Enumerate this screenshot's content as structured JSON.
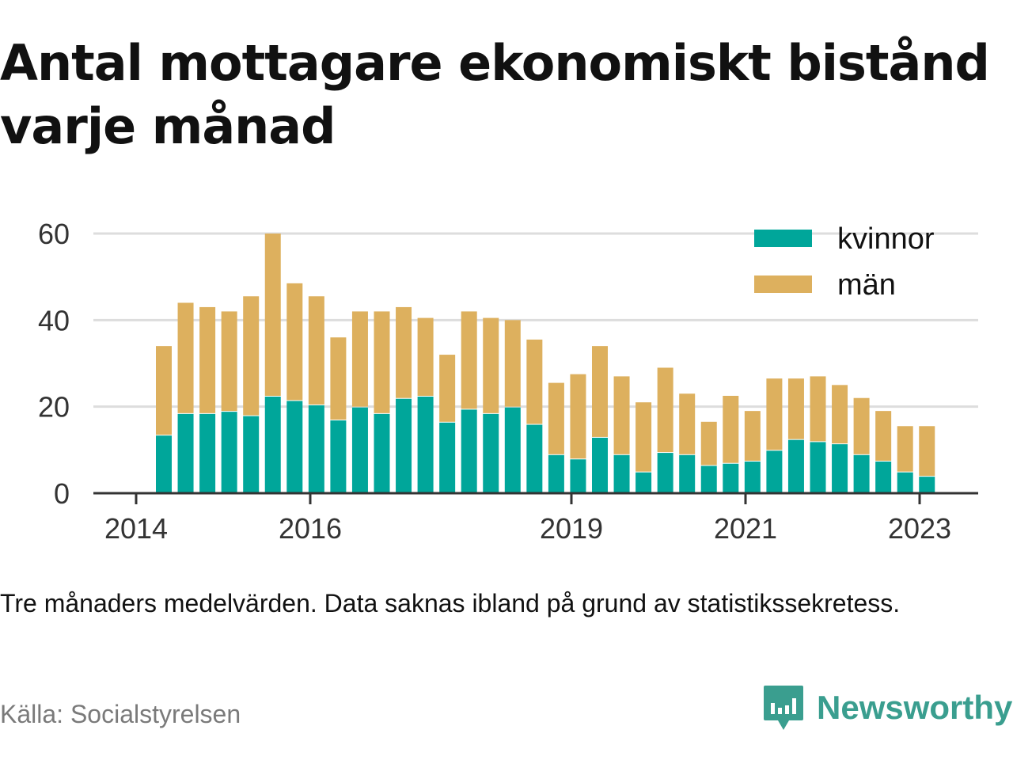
{
  "title": "Antal mottagare ekonomiskt bistånd varje månad",
  "note": "Tre månaders medelvärden. Data saknas ibland på grund av statistikssekretess.",
  "source": "Källa: Socialstyrelsen",
  "brand": {
    "name": "Newsworthy",
    "color": "#3a9e8f"
  },
  "colors": {
    "kvinnor": "#00a69a",
    "man": "#ddb05e",
    "grid": "#dddddd",
    "axis": "#333333"
  },
  "chart_data": {
    "type": "bar",
    "stacked": true,
    "ylim": [
      0,
      60
    ],
    "yticks": [
      0,
      20,
      40,
      60
    ],
    "xtick_labels": [
      "2014",
      "2016",
      "2019",
      "2021",
      "2023"
    ],
    "grid": "horizontal",
    "legend_position": "top-right",
    "series": [
      {
        "name": "kvinnor",
        "values": [
          13.5,
          18.5,
          18.5,
          19,
          18,
          22.5,
          21.5,
          20.5,
          17,
          20,
          18.5,
          22,
          22.5,
          16.5,
          19.5,
          18.5,
          20,
          16,
          9,
          8,
          13,
          9,
          5,
          9.5,
          9,
          6.5,
          7,
          7.5,
          10,
          12.5,
          12,
          11.5,
          9,
          7.5,
          5,
          4
        ]
      },
      {
        "name": "män",
        "values": [
          20.5,
          25.5,
          24.5,
          23,
          27.5,
          37.5,
          27,
          25,
          19,
          22,
          23.5,
          21,
          18,
          15.5,
          22.5,
          22,
          20,
          19.5,
          16.5,
          19.5,
          21,
          18,
          16,
          19.5,
          14,
          10,
          15.5,
          11.5,
          16.5,
          14,
          15,
          13.5,
          13,
          11.5,
          10.5,
          11.5
        ]
      }
    ]
  }
}
